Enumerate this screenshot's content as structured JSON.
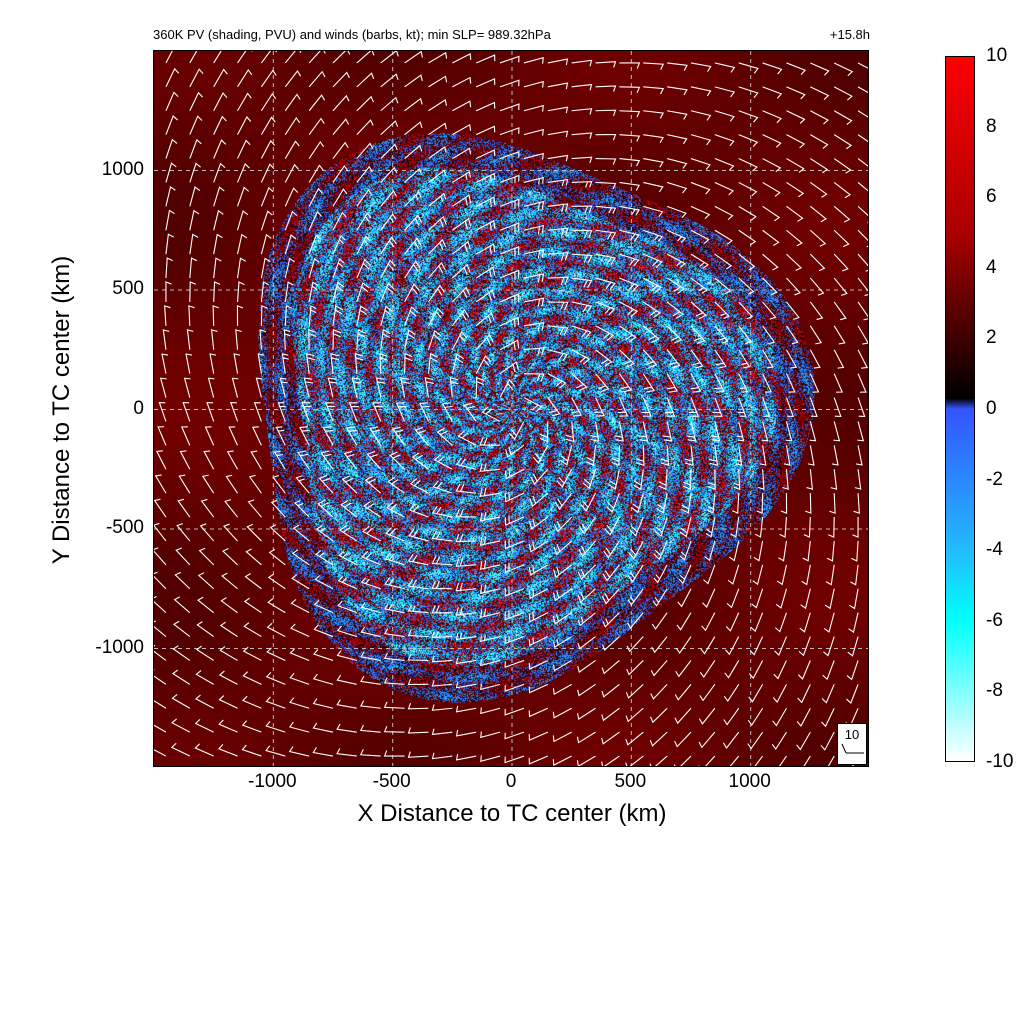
{
  "chart_data": {
    "type": "heatmap",
    "title": "360K PV (shading, PVU) and winds (barbs, kt); min SLP= 989.32hPa",
    "time_label": "+15.8h",
    "xlabel": "X Distance to TC center (km)",
    "ylabel": "Y Distance to TC center (km)",
    "xlim": [
      -1500,
      1500
    ],
    "ylim": [
      -1500,
      1500
    ],
    "xticks": [
      -1000,
      -500,
      0,
      500,
      1000
    ],
    "yticks": [
      -1000,
      -500,
      0,
      500,
      1000
    ],
    "x_tick_labels": [
      "-1000",
      "-500",
      "0",
      "500",
      "1000"
    ],
    "y_tick_labels": [
      "-1000",
      "-500",
      "0",
      "500",
      "1000"
    ],
    "grid": true,
    "field": "360K potential vorticity (PVU)",
    "disturbed_region_radius_km": 1150,
    "ambient_pv_pvu": 3.5,
    "wind_barbs": {
      "units": "kt",
      "reference_label": "10",
      "spacing_km": 100
    },
    "colorbar": {
      "range": [
        -10,
        10
      ],
      "tick_labels": [
        "10",
        "8",
        "6",
        "4",
        "2",
        "0",
        "-2",
        "-4",
        "-6",
        "-8",
        "-10"
      ],
      "stops": [
        {
          "value": 10,
          "color": "#ff0000"
        },
        {
          "value": 5,
          "color": "#aa0000"
        },
        {
          "value": 0.3,
          "color": "#000000"
        },
        {
          "value": 0,
          "color": "#3355ff"
        },
        {
          "value": -4,
          "color": "#22bbff"
        },
        {
          "value": -6,
          "color": "#00ffff"
        },
        {
          "value": -10,
          "color": "#ffffff"
        }
      ]
    }
  }
}
